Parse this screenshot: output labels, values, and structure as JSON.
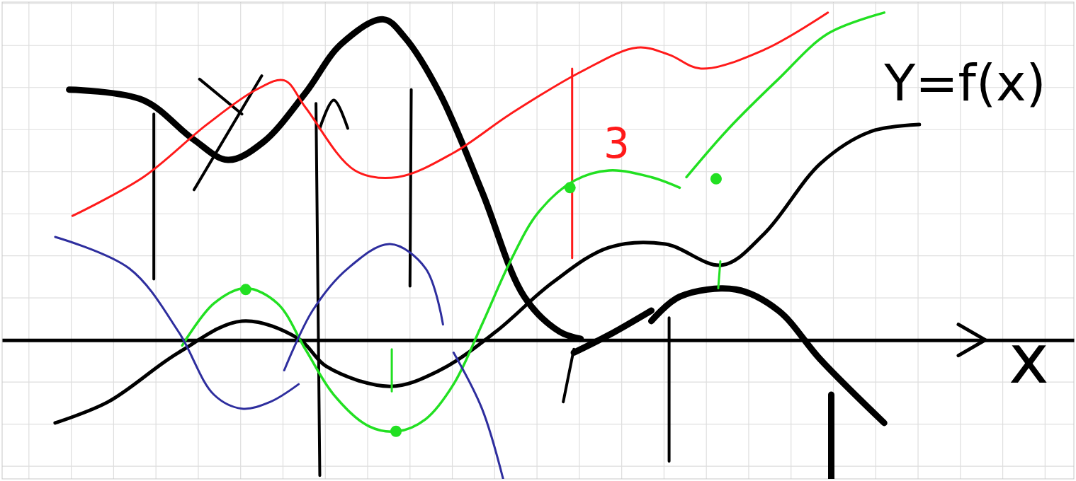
{
  "chart_data": {
    "type": "line",
    "xlabel": "x",
    "xlim": [
      -0.633,
      24.68
    ],
    "ylim": [
      -3.3,
      8.03
    ],
    "xticks": [
      0,
      1,
      2,
      3,
      4,
      5,
      6,
      7,
      8,
      9,
      10,
      11,
      12,
      13,
      14,
      15,
      16,
      17,
      18,
      19,
      20,
      21,
      22,
      23,
      24
    ],
    "yticks": [
      -3,
      -2,
      -1,
      0,
      1,
      2,
      3,
      4,
      5,
      6,
      7,
      8
    ],
    "grid": true,
    "tick_labels": false,
    "series": [
      {
        "type": "line",
        "color": "#000000",
        "x": [
          0.95,
          2.7,
          3.87,
          4.7,
          5.53,
          6.53,
          7.37,
          8.37,
          8.87,
          9.7,
          10.7,
          11.7,
          12.53,
          13.03,
          null,
          12.87,
          13.7,
          14.7,
          null,
          14.7,
          15.37,
          16.7,
          17.7,
          18.7,
          20.2,
          null,
          18.95,
          18.95
        ],
        "values": [
          5.95,
          5.7,
          4.78,
          4.28,
          4.7,
          5.87,
          7.03,
          7.62,
          7.2,
          5.87,
          3.53,
          1.03,
          0.2,
          0.03,
          null,
          -0.3,
          0.12,
          0.7,
          null,
          0.45,
          1.03,
          1.2,
          0.7,
          -0.47,
          -1.97,
          null,
          -1.3,
          -3.3
        ]
      },
      {
        "type": "line",
        "color": "#000000",
        "x": [
          0.62,
          1.87,
          3.53,
          5.03,
          6.37,
          7.03,
          8.53,
          9.7,
          11.03,
          12.37,
          13.7,
          15.03,
          16.37,
          17.37,
          18.7,
          19.87,
          21.03
        ],
        "values": [
          -1.97,
          -1.47,
          -0.3,
          0.45,
          0.03,
          -0.63,
          -1.1,
          -0.72,
          0.2,
          1.37,
          2.2,
          2.28,
          1.78,
          2.53,
          4.2,
          4.95,
          5.12
        ]
      },
      {
        "type": "line",
        "color": "#000000",
        "x": [
          2.95,
          2.95,
          null,
          6.78,
          6.87,
          null,
          6.87,
          7.2,
          7.53,
          null,
          9.03,
          9.0,
          null,
          12.87,
          12.62,
          null,
          15.12,
          15.12,
          null,
          4.03,
          5.03,
          null,
          3.9,
          5.5
        ],
        "values": [
          5.37,
          1.45,
          null,
          5.62,
          -3.22,
          null,
          5.03,
          5.7,
          5.03,
          null,
          5.95,
          1.28,
          null,
          -0.22,
          -1.47,
          null,
          0.53,
          -2.88,
          null,
          6.2,
          5.37,
          null,
          3.57,
          6.28
        ]
      },
      {
        "type": "line",
        "color": "#ff1a1a",
        "x": [
          1.03,
          2.7,
          4.2,
          5.37,
          6.03,
          6.53,
          7.7,
          8.7,
          10.03,
          11.37,
          13.03,
          14.37,
          15.12,
          15.87,
          17.37,
          18.87
        ],
        "values": [
          2.95,
          3.87,
          5.12,
          5.95,
          6.17,
          5.53,
          4.03,
          3.87,
          4.45,
          5.37,
          6.37,
          6.95,
          6.78,
          6.45,
          6.9,
          7.78
        ]
      },
      {
        "type": "line",
        "color": "#ff1a1a",
        "x": [
          12.83,
          12.83
        ],
        "values": [
          6.45,
          1.95
        ]
      },
      {
        "type": "line",
        "color": "#22e022",
        "x": [
          3.62,
          4.37,
          5.12,
          5.87,
          6.53,
          7.2,
          8.03,
          8.7,
          9.37,
          10.03,
          10.7,
          11.37,
          12.03,
          12.87,
          13.7,
          14.7,
          15.37,
          null,
          15.53,
          16.53,
          17.7,
          18.87,
          20.2
        ],
        "values": [
          -0.13,
          0.87,
          1.23,
          0.87,
          -0.22,
          -1.3,
          -2.05,
          -2.17,
          -1.88,
          -1.05,
          0.37,
          1.87,
          3.03,
          3.78,
          4.03,
          3.87,
          3.62,
          null,
          3.87,
          5.03,
          6.2,
          7.28,
          7.78
        ]
      },
      {
        "type": "line",
        "color": "#22e022",
        "x": [
          8.57,
          8.57,
          null,
          16.33,
          16.28
        ],
        "values": [
          -0.22,
          -1.22,
          null,
          1.87,
          1.23
        ]
      },
      {
        "type": "line",
        "color": "#2e2e9e",
        "x": [
          0.62,
          2.37,
          3.53,
          4.37,
          5.03,
          5.7,
          6.37,
          null,
          6.03,
          6.7,
          7.53,
          8.53,
          9.37,
          9.78,
          null,
          10.03,
          10.7,
          11.2
        ],
        "values": [
          2.45,
          1.7,
          0.2,
          -1.3,
          -1.63,
          -1.47,
          -1.05,
          null,
          -0.72,
          0.7,
          1.7,
          2.28,
          1.7,
          0.37,
          null,
          -0.3,
          -1.63,
          -3.3
        ]
      },
      {
        "type": "scatter",
        "marker": "circle",
        "color": "#22e022",
        "x": [
          5.12,
          8.67,
          12.78,
          16.23
        ],
        "values": [
          1.2,
          -2.17,
          3.62,
          3.83
        ]
      }
    ],
    "annotations": [
      {
        "text": "Y=f(x)",
        "x": 20.2,
        "y": 5.7,
        "color": "#000000"
      },
      {
        "text": "3",
        "x": 13.57,
        "y": 4.33,
        "color": "#ff1a1a"
      }
    ]
  }
}
